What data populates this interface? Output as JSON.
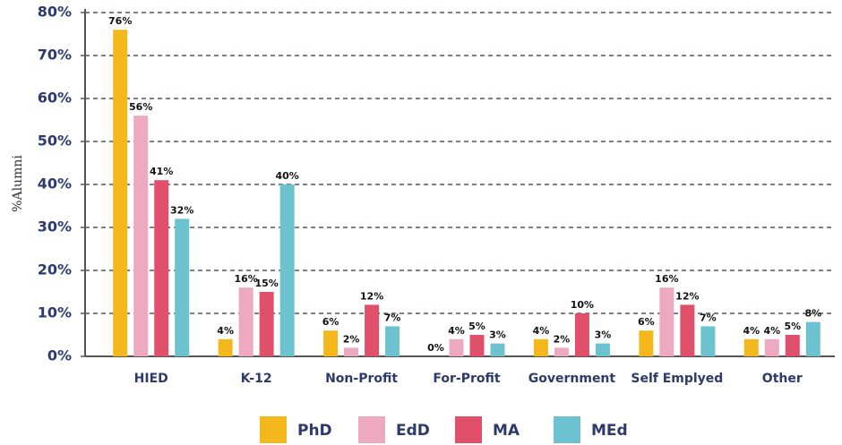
{
  "chart_data": {
    "type": "bar",
    "y_label": "%Alumni",
    "categories": [
      "HIED",
      "K-12",
      "Non-Profit",
      "For-Profit",
      "Government",
      "Self Emplyed",
      "Other"
    ],
    "series": [
      {
        "name": "PhD",
        "color": "#f5b81c",
        "values": [
          76,
          4,
          6,
          0,
          4,
          6,
          4
        ],
        "value_labels": [
          "76%",
          "4%",
          "6%",
          "0%",
          "4%",
          "6%",
          "4%"
        ]
      },
      {
        "name": "EdD",
        "color": "#eca9c0",
        "values": [
          56,
          16,
          2,
          4,
          2,
          16,
          4
        ],
        "value_labels": [
          "56%",
          "16%",
          "2%",
          "4%",
          "2%",
          "16%",
          "4%"
        ]
      },
      {
        "name": "MA",
        "color": "#e0506a",
        "values": [
          41,
          15,
          12,
          5,
          10,
          12,
          5
        ],
        "value_labels": [
          "41%",
          "15%",
          "12%",
          "5%",
          "10%",
          "12%",
          "5%"
        ]
      },
      {
        "name": "MEd",
        "color": "#6cc3cf",
        "values": [
          32,
          40,
          7,
          3,
          3,
          7,
          8
        ],
        "value_labels": [
          "32%",
          "40%",
          "7%",
          "3%",
          "3%",
          "7%",
          "8%"
        ]
      }
    ],
    "ylim": [
      0,
      80
    ],
    "yticks": [
      {
        "value": 0,
        "label": "0%"
      },
      {
        "value": 10,
        "label": "10%"
      },
      {
        "value": 20,
        "label": "20%"
      },
      {
        "value": 30,
        "label": "30%"
      },
      {
        "value": 40,
        "label": "40%"
      },
      {
        "value": 50,
        "label": "50%"
      },
      {
        "value": 60,
        "label": "60%"
      },
      {
        "value": 70,
        "label": "70%"
      },
      {
        "value": 80,
        "label": "80%"
      }
    ],
    "grid": true
  }
}
